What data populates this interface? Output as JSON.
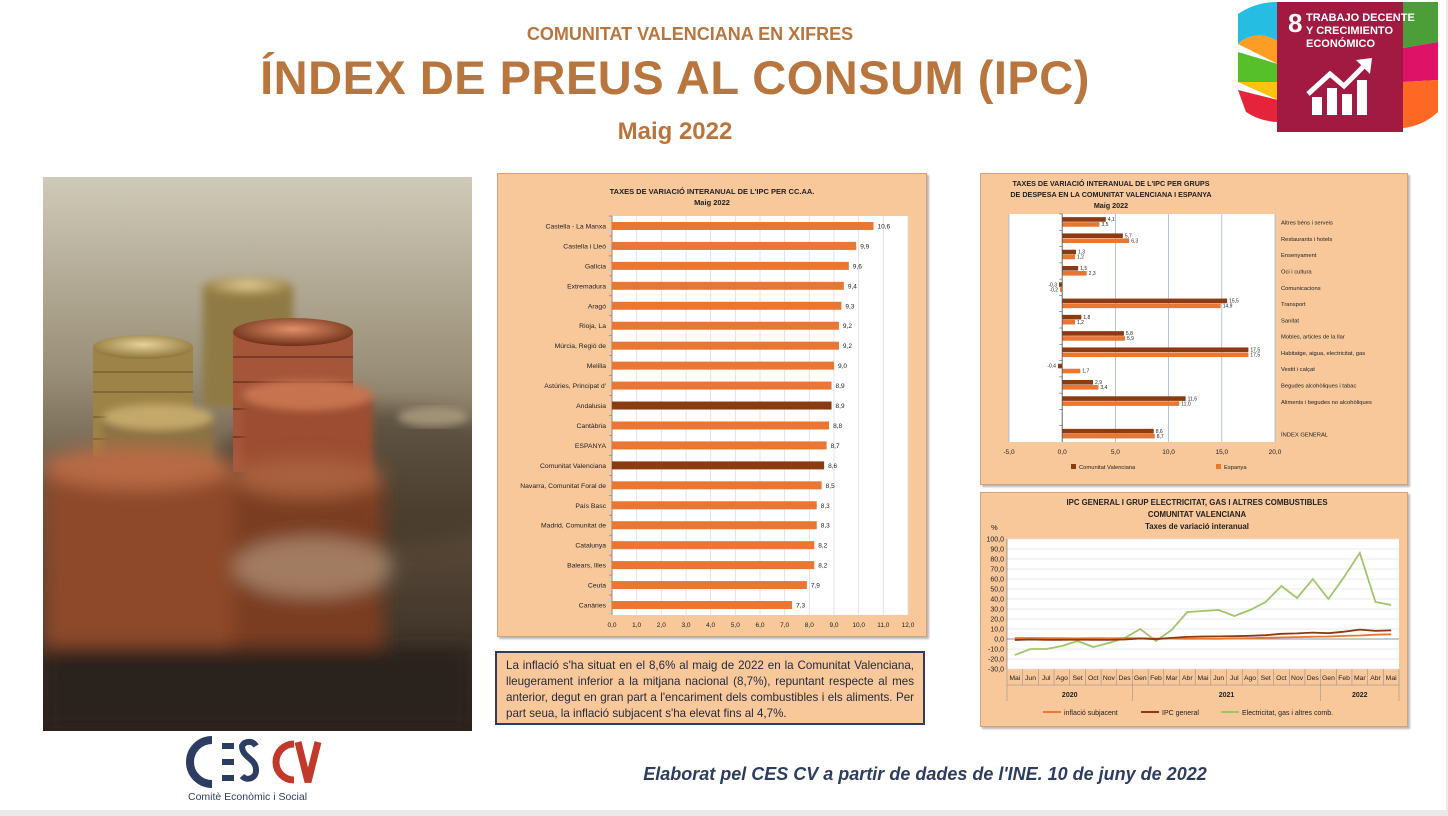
{
  "header": {
    "subtitle": "COMUNITAT VALENCIANA EN XIFRES",
    "title": "ÍNDEX DE PREUS AL CONSUM (IPC)",
    "date": "Maig 2022"
  },
  "sdg_badge": {
    "number": "8",
    "line1": "TRABAJO DECENTE",
    "line2": "Y CRECIMIENTO",
    "line3": "ECONÓMICO",
    "color": "#a21942"
  },
  "photo": {
    "icon": "coins-photo"
  },
  "summary_text": "La inflació s'ha situat en el 8,6% al maig de 2022 en la Comunitat Valenciana, lleugerament inferior a la mitjana nacional (8,7%), repuntant respecte al mes anterior, degut en gran part a l'encariment dels combustibles i els aliments. Per part seua, la inflació subjacent s'ha elevat fins al 4,7%.",
  "footer": {
    "text": "Elaborat pel CES CV a partir de dades de l'INE. 10 de juny de 2022"
  },
  "logo": {
    "main": "CESCV",
    "subtitle": "Comitè Econòmic i Social"
  },
  "colors": {
    "orange": "#e97632",
    "brown": "#8a3b12",
    "green": "#a3c46a",
    "panel": "#f8c79a",
    "title": "#b8753d",
    "navy": "#2d3d62"
  },
  "chart_data": [
    {
      "type": "bar",
      "orientation": "horizontal",
      "title": "TAXES DE VARIACIÓ INTERANUAL DE L'IPC PER CC.AA.",
      "subtitle": "Maig 2022",
      "categories": [
        "Castella - La Manxa",
        "Castella i Lleó",
        "Galícia",
        "Extremadura",
        "Aragó",
        "Rioja, La",
        "Múrcia, Regió de",
        "Melilla",
        "Astúries, Principat d'",
        "Andalusia",
        "Cantàbria",
        "ESPANYA",
        "Comunitat Valenciana",
        "Navarra, Comunitat Foral de",
        "País Basc",
        "Madrid, Comunitat de",
        "Catalunya",
        "Balears, Illes",
        "Ceuta",
        "Canàries"
      ],
      "values": [
        10.6,
        9.9,
        9.6,
        9.4,
        9.3,
        9.2,
        9.2,
        9.0,
        8.9,
        8.9,
        8.8,
        8.7,
        8.6,
        8.5,
        8.3,
        8.3,
        8.2,
        8.2,
        7.9,
        7.3
      ],
      "value_labels": [
        "10,6",
        "9,9",
        "9,6",
        "9,4",
        "9,3",
        "9,2",
        "9,2",
        "9,0",
        "8,9",
        "8,9",
        "8,8",
        "8,7",
        "8,6",
        "8,5",
        "8,3",
        "8,3",
        "8,2",
        "8,2",
        "7,9",
        "7,3"
      ],
      "highlighted": [
        "Andalusia",
        "Comunitat Valenciana"
      ],
      "xlim": [
        0,
        12
      ],
      "x_ticks": [
        "0,0",
        "1,0",
        "2,0",
        "3,0",
        "4,0",
        "5,0",
        "6,0",
        "7,0",
        "8,0",
        "9,0",
        "10,0",
        "11,0",
        "12,0"
      ],
      "grid": true
    },
    {
      "type": "bar",
      "orientation": "horizontal",
      "title": "TAXES DE VARIACIÓ INTERANUAL DE L'IPC PER GRUPS",
      "title2": "DE DESPESA EN LA COMUNITAT VALENCIANA I ESPANYA",
      "subtitle": "Maig 2022",
      "categories": [
        "Altres béns i serveis",
        "Restaurants i hotels",
        "Ensenyament",
        "Oci i cultura",
        "Comunicacions",
        "Transport",
        "Sanitat",
        "Mobles, articles de la llar",
        "Habitatge, aigua, electricitat, gas",
        "Vestit i calçat",
        "Begudes alcohòliques i tabac",
        "Aliments i begudes no alcohòliques",
        "",
        "ÍNDEX GENERAL"
      ],
      "series": [
        {
          "name": "Comunitat Valenciana",
          "values": [
            4.1,
            5.7,
            1.3,
            1.5,
            -0.3,
            15.5,
            1.8,
            5.8,
            17.5,
            -0.4,
            2.9,
            11.6,
            null,
            8.6
          ],
          "labels": [
            "4,1",
            "5,7",
            "1,3",
            "1,5",
            "-0,3",
            "15,5",
            "1,8",
            "5,8",
            "17,5",
            "-0,4",
            "2,9",
            "11,6",
            "",
            "8,6"
          ],
          "color": "#8a3b12"
        },
        {
          "name": "Espanya",
          "values": [
            3.5,
            6.3,
            1.2,
            2.3,
            -0.2,
            14.9,
            1.2,
            5.9,
            17.5,
            1.7,
            3.4,
            11.0,
            null,
            8.7
          ],
          "labels": [
            "3,5",
            "6,3",
            "1,2",
            "2,3",
            "-0,2",
            "14,9",
            "1,2",
            "5,9",
            "17,5",
            "1,7",
            "3,4",
            "11,0",
            "",
            "8,7"
          ],
          "color": "#e97632"
        }
      ],
      "xlim": [
        -5,
        20
      ],
      "x_ticks": [
        "-5,0",
        "0,0",
        "5,0",
        "10,0",
        "15,0",
        "20,0"
      ],
      "legend": "bottom",
      "grid": true
    },
    {
      "type": "line",
      "title": "IPC GENERAL I GRUP ELECTRICITAT, GAS I ALTRES COMBUSTIBLES",
      "title2": "COMUNITAT VALENCIANA",
      "subtitle": "Taxes de variació interanual",
      "ylabel": "%",
      "x": [
        "Mai",
        "Jun",
        "Jul",
        "Ago",
        "Set",
        "Oct",
        "Nov",
        "Des",
        "Gen",
        "Feb",
        "Mar",
        "Abr",
        "Mai",
        "Jun",
        "Jul",
        "Ago",
        "Set",
        "Oct",
        "Nov",
        "Des",
        "Gen",
        "Feb",
        "Mar",
        "Abr",
        "Mai"
      ],
      "year_labels": [
        {
          "label": "2020",
          "from": 0,
          "to": 7
        },
        {
          "label": "2021",
          "from": 8,
          "to": 19
        },
        {
          "label": "2022",
          "from": 20,
          "to": 24
        }
      ],
      "series": [
        {
          "name": "inflació subjacent",
          "color": "#e97632",
          "values": [
            1.0,
            1.0,
            0.9,
            0.8,
            0.6,
            0.8,
            0.7,
            0.8,
            0.7,
            0.5,
            0.4,
            0.2,
            0.3,
            0.2,
            0.6,
            0.9,
            1.2,
            1.6,
            1.9,
            2.3,
            2.5,
            3.1,
            3.5,
            4.3,
            4.7
          ]
        },
        {
          "name": "IPC general",
          "color": "#8a3b12",
          "values": [
            -1.0,
            -0.5,
            -0.8,
            -0.8,
            -0.6,
            -0.8,
            -0.9,
            -0.5,
            0.5,
            -0.2,
            1.1,
            2.1,
            2.5,
            2.6,
            2.8,
            3.2,
            3.8,
            5.2,
            5.6,
            6.4,
            5.8,
            7.3,
            9.4,
            8.1,
            8.6
          ]
        },
        {
          "name": "Electricitat, gas i altres comb.",
          "color": "#a3c46a",
          "values": [
            -16,
            -10,
            -10,
            -7,
            -2,
            -8,
            -4,
            1,
            10,
            -2,
            9,
            27,
            28,
            29,
            23,
            29,
            37,
            53,
            41,
            60,
            40,
            62,
            86,
            37,
            34
          ]
        }
      ],
      "ylim": [
        -30,
        100
      ],
      "y_ticks": [
        "100,0",
        "90,0",
        "80,0",
        "70,0",
        "60,0",
        "50,0",
        "40,0",
        "30,0",
        "20,0",
        "10,0",
        "0,0",
        "-10,0",
        "-20,0",
        "-30,0"
      ],
      "legend": "bottom",
      "grid": true
    }
  ]
}
